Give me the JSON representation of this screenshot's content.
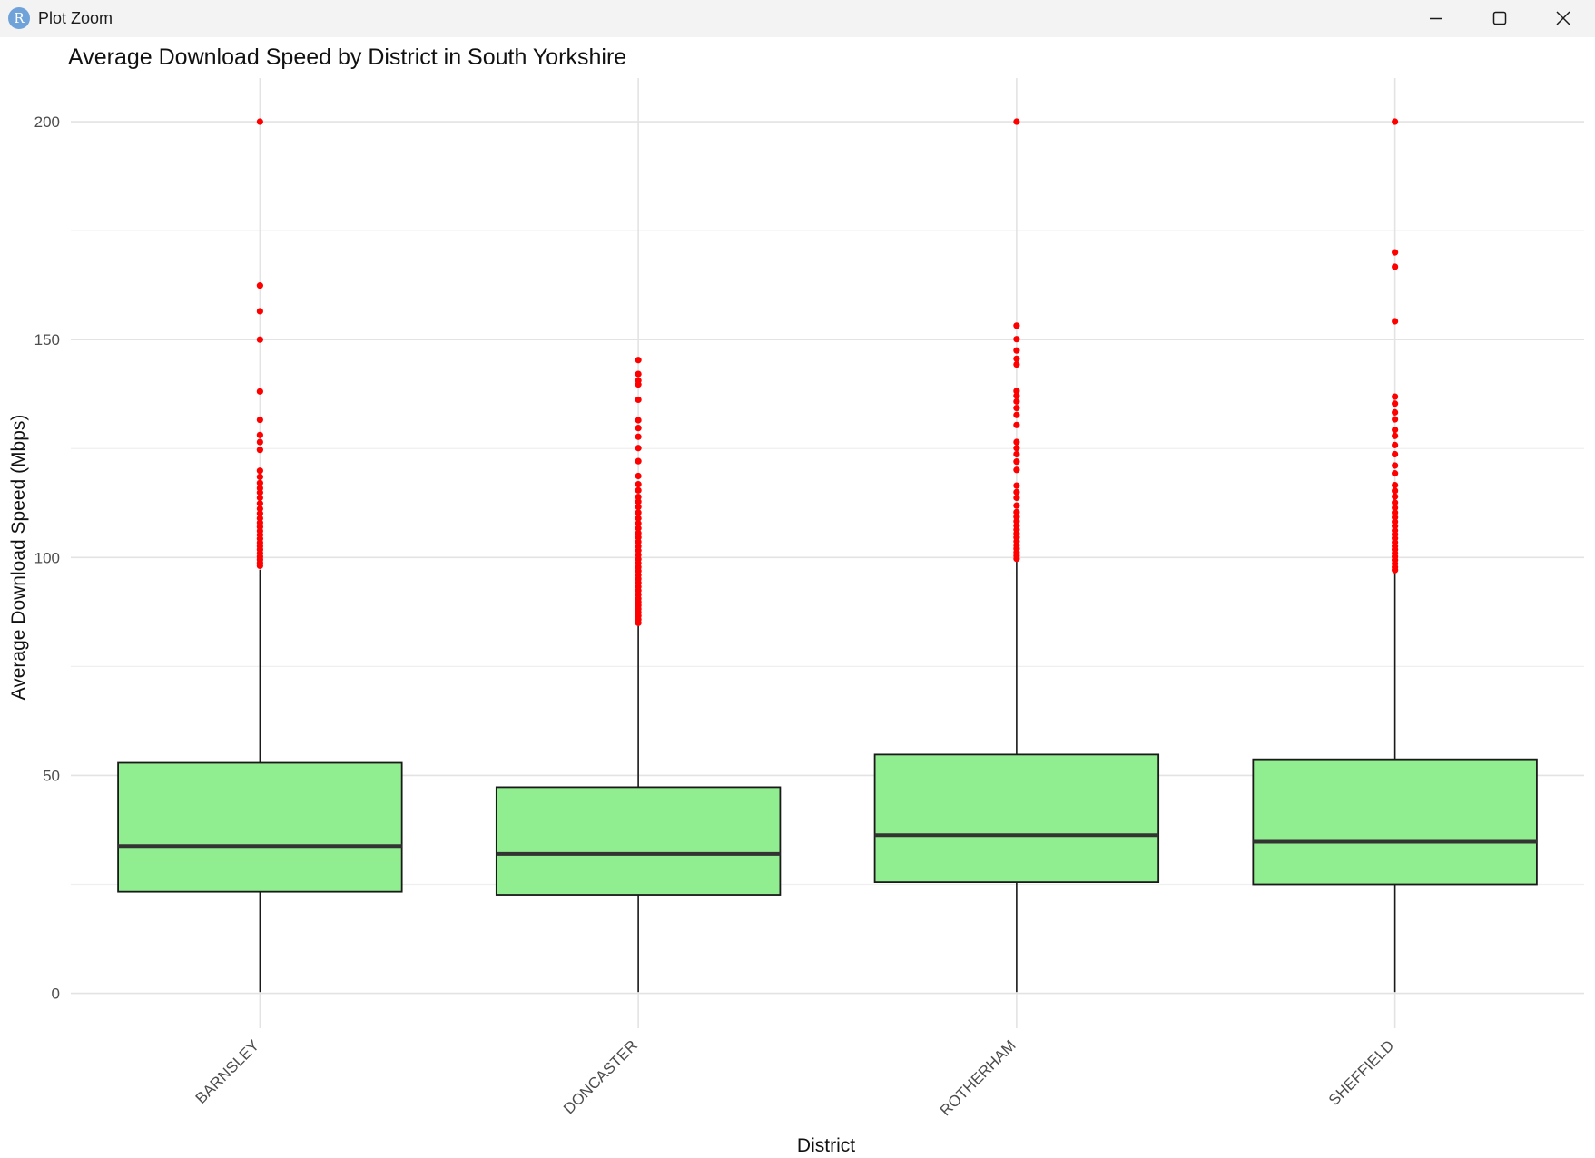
{
  "window": {
    "title": "Plot Zoom",
    "icon": "r-logo-icon",
    "icon_letter": "R",
    "controls": [
      "minimize-icon",
      "maximize-icon",
      "close-icon"
    ]
  },
  "colors": {
    "box_fill": "#90ee90",
    "box_stroke": "#1a1a1a",
    "outlier": "#ff0000",
    "grid_major": "#e3e3e3",
    "grid_minor": "#efefef",
    "titlebar": "#f3f3f3"
  },
  "chart_data": {
    "type": "boxplot",
    "title": "Average Download Speed by District in South Yorkshire",
    "xlabel": "District",
    "ylabel": "Average Download Speed (Mbps)",
    "ylim": [
      -8,
      210
    ],
    "yticks": [
      0,
      50,
      100,
      150,
      200
    ],
    "y_minor": [
      25,
      75,
      125,
      175
    ],
    "grid": true,
    "legend": "none",
    "categories": [
      "BARNSLEY",
      "DONCASTER",
      "ROTHERHAM",
      "SHEFFIELD"
    ],
    "boxes": [
      {
        "category": "BARNSLEY",
        "q1": 23.3,
        "median": 33.8,
        "q3": 52.9,
        "whisker_low": 0.3,
        "whisker_high": 97.2,
        "outliers": [
          200,
          162.4,
          156.5,
          150,
          138.1,
          131.6,
          128.1,
          126.5,
          124.7,
          119.9,
          118.5,
          117.1,
          115.9,
          114.9,
          113.7,
          112.4,
          111.2,
          110.1,
          109.0,
          108.0,
          107.0,
          106.1,
          105.2,
          104.3,
          103.4,
          102.6,
          101.8,
          101.0,
          100.2,
          99.5,
          98.8,
          98.1
        ]
      },
      {
        "category": "DONCASTER",
        "q1": 22.6,
        "median": 32.0,
        "q3": 47.3,
        "whisker_low": 0.3,
        "whisker_high": 84.3,
        "outliers": [
          145.3,
          142.1,
          140.6,
          139.7,
          136.2,
          131.5,
          129.7,
          127.7,
          125.1,
          122.1,
          118.7,
          116.8,
          115.4,
          113.9,
          112.8,
          111.6,
          110.3,
          109.0,
          107.8,
          106.7,
          105.6,
          104.6,
          103.6,
          102.6,
          101.6,
          100.6,
          99.6,
          98.7,
          97.8,
          96.9,
          96.0,
          95.1,
          94.2,
          93.3,
          92.4,
          91.5,
          90.6,
          89.8,
          89.0,
          88.2,
          87.4,
          86.6,
          85.8,
          85.0
        ]
      },
      {
        "category": "ROTHERHAM",
        "q1": 25.5,
        "median": 36.3,
        "q3": 54.8,
        "whisker_low": 0.3,
        "whisker_high": 99.2,
        "outliers": [
          200,
          153.2,
          150.1,
          147.5,
          145.6,
          144.3,
          138.2,
          137.1,
          135.8,
          134.3,
          132.7,
          130.4,
          126.5,
          125.1,
          123.7,
          122.0,
          120.1,
          116.5,
          115.0,
          113.7,
          111.9,
          110.4,
          109.3,
          108.3,
          107.3,
          106.4,
          105.5,
          104.6,
          103.7,
          102.8,
          102.0,
          101.2,
          100.4,
          99.7
        ]
      },
      {
        "category": "SHEFFIELD",
        "q1": 25.0,
        "median": 34.8,
        "q3": 53.7,
        "whisker_low": 0.3,
        "whisker_high": 96.6,
        "outliers": [
          200,
          170.0,
          166.7,
          154.2,
          136.9,
          135.3,
          133.3,
          131.7,
          129.3,
          127.9,
          125.8,
          123.7,
          121.1,
          119.3,
          116.6,
          115.3,
          114.0,
          112.6,
          111.4,
          110.3,
          109.2,
          108.2,
          107.2,
          106.2,
          105.3,
          104.4,
          103.5,
          102.6,
          101.8,
          101.0,
          100.2,
          99.4,
          98.6,
          97.8,
          97.1
        ]
      }
    ]
  }
}
